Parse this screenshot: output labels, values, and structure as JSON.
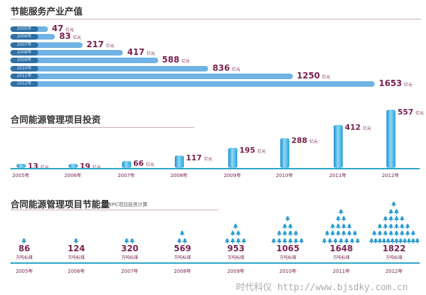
{
  "chart_data": [
    {
      "type": "bar",
      "orientation": "horizontal",
      "title": "节能服务产业产值",
      "unit": "亿元",
      "categories": [
        "2005年",
        "2006年",
        "2007年",
        "2008年",
        "2009年",
        "2010年",
        "2011年",
        "2012年"
      ],
      "values": [
        47,
        83,
        217,
        417,
        588,
        836,
        1250,
        1653
      ]
    },
    {
      "type": "bar",
      "title": "合同能源管理项目投资",
      "unit": "亿元",
      "categories": [
        "2005年",
        "2006年",
        "2007年",
        "2008年",
        "2009年",
        "2010年",
        "2011年",
        "2012年"
      ],
      "values": [
        13,
        19,
        66,
        117,
        195,
        288,
        412,
        557
      ]
    },
    {
      "type": "bar",
      "subtype": "pictogram",
      "title": "合同能源管理项目节能量",
      "subtitle": "按EPC项目投资计算",
      "unit": "万吨标煤",
      "categories": [
        "2005年",
        "2006年",
        "2007年",
        "2008年",
        "2009年",
        "2010年",
        "2011年",
        "2012年"
      ],
      "values": [
        86,
        124,
        320,
        569,
        953,
        1065,
        1648,
        1822
      ],
      "tree_rows": [
        [
          1
        ],
        [
          1
        ],
        [
          2
        ],
        [
          1,
          2
        ],
        [
          1,
          2,
          4
        ],
        [
          1,
          2,
          4,
          6
        ],
        [
          1,
          2,
          4,
          6,
          7
        ],
        [
          1,
          2,
          4,
          6,
          8,
          12
        ]
      ]
    }
  ],
  "colors": {
    "bar": "#6fb2e3",
    "pill": "#2f6fa6",
    "value": "#7a2250",
    "tree": "#2a9bd0",
    "axis": "#2aa6c4"
  },
  "watermark": "时代科仪 http://www.bjsdky.com.cn"
}
